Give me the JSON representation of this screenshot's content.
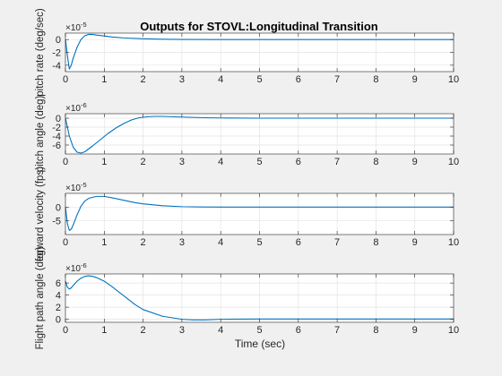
{
  "figure": {
    "title": "Outputs for STOVL:Longitudinal Transition",
    "xlabel": "Time (sec)",
    "background": "#f0f0f0",
    "line_color": "#0072bd"
  },
  "chart_data": [
    {
      "type": "line",
      "ylabel": "pitch rate (deg/sec)",
      "exponent": "-5",
      "xlim": [
        0,
        10
      ],
      "ylim": [
        -5,
        1
      ],
      "yticks": [
        -4,
        -2,
        0
      ],
      "xticks": [
        0,
        1,
        2,
        3,
        4,
        5,
        6,
        7,
        8,
        9,
        10
      ],
      "grid": true,
      "x": [
        0,
        0.05,
        0.1,
        0.15,
        0.2,
        0.3,
        0.4,
        0.5,
        0.6,
        0.7,
        0.8,
        1.0,
        1.2,
        1.5,
        2.0,
        2.5,
        3.0,
        4.0,
        5.0,
        6.0,
        7.0,
        8.0,
        9.0,
        10.0
      ],
      "y": [
        0,
        -2.5,
        -4.6,
        -4.0,
        -2.9,
        -1.2,
        0.0,
        0.6,
        0.8,
        0.8,
        0.7,
        0.55,
        0.4,
        0.25,
        0.12,
        0.05,
        0.02,
        0,
        0,
        0,
        0,
        0,
        0,
        0
      ]
    },
    {
      "type": "line",
      "ylabel": "pitch angle (deg)",
      "exponent": "-6",
      "xlim": [
        0,
        10
      ],
      "ylim": [
        -8,
        1
      ],
      "yticks": [
        -6,
        -4,
        -2,
        0
      ],
      "xticks": [
        0,
        1,
        2,
        3,
        4,
        5,
        6,
        7,
        8,
        9,
        10
      ],
      "grid": true,
      "x": [
        0,
        0.1,
        0.2,
        0.3,
        0.4,
        0.5,
        0.7,
        0.9,
        1.1,
        1.3,
        1.5,
        1.7,
        1.9,
        2.1,
        2.3,
        2.5,
        2.8,
        3.2,
        3.6,
        4.0,
        5.0,
        6.0,
        7.0,
        8.0,
        9.0,
        10.0
      ],
      "y": [
        0,
        -4.0,
        -6.5,
        -7.6,
        -7.8,
        -7.5,
        -6.2,
        -4.8,
        -3.4,
        -2.2,
        -1.2,
        -0.4,
        0.1,
        0.3,
        0.4,
        0.4,
        0.3,
        0.2,
        0.1,
        0.05,
        0,
        0,
        0,
        0,
        0,
        0
      ]
    },
    {
      "type": "line",
      "ylabel": "forward velocity (fps)",
      "exponent": "-5",
      "xlim": [
        0,
        10
      ],
      "ylim": [
        -10,
        5
      ],
      "yticks": [
        -5,
        0
      ],
      "xticks": [
        0,
        1,
        2,
        3,
        4,
        5,
        6,
        7,
        8,
        9,
        10
      ],
      "grid": true,
      "x": [
        0,
        0.05,
        0.1,
        0.15,
        0.2,
        0.3,
        0.4,
        0.5,
        0.6,
        0.8,
        1.0,
        1.2,
        1.5,
        1.8,
        2.0,
        2.5,
        3.0,
        3.5,
        4.0,
        5.0,
        6.0,
        7.0,
        8.0,
        9.0,
        10.0
      ],
      "y": [
        0,
        -6.0,
        -8.5,
        -8.0,
        -6.5,
        -2.8,
        0.3,
        2.2,
        3.2,
        3.9,
        3.9,
        3.4,
        2.5,
        1.6,
        1.2,
        0.5,
        0.15,
        0.05,
        0,
        0,
        0,
        0,
        0,
        0,
        0
      ]
    },
    {
      "type": "line",
      "ylabel": "Flight path angle (deg)",
      "exponent": "-6",
      "xlim": [
        0,
        10
      ],
      "ylim": [
        -0.5,
        7.5
      ],
      "yticks": [
        0,
        2,
        4,
        6
      ],
      "xticks": [
        0,
        1,
        2,
        3,
        4,
        5,
        6,
        7,
        8,
        9,
        10
      ],
      "grid": true,
      "x": [
        0,
        0.05,
        0.1,
        0.15,
        0.2,
        0.3,
        0.4,
        0.5,
        0.6,
        0.7,
        0.8,
        1.0,
        1.2,
        1.5,
        1.8,
        2.0,
        2.5,
        3.0,
        3.3,
        3.6,
        4.0,
        5.0,
        6.0,
        7.0,
        8.0,
        9.0,
        10.0
      ],
      "y": [
        6.3,
        5.3,
        5.0,
        5.2,
        5.6,
        6.3,
        6.8,
        7.1,
        7.2,
        7.1,
        6.9,
        6.3,
        5.4,
        3.9,
        2.4,
        1.6,
        0.5,
        0.0,
        -0.1,
        -0.1,
        0.0,
        0.05,
        0.05,
        0.05,
        0.05,
        0.05,
        0.05
      ]
    }
  ]
}
